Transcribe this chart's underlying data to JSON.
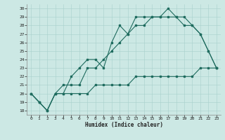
{
  "xlabel": "Humidex (Indice chaleur)",
  "xlim": [
    -0.5,
    23.5
  ],
  "ylim": [
    17.5,
    30.5
  ],
  "yticks": [
    18,
    19,
    20,
    21,
    22,
    23,
    24,
    25,
    26,
    27,
    28,
    29,
    30
  ],
  "xticks": [
    0,
    1,
    2,
    3,
    4,
    5,
    6,
    7,
    8,
    9,
    10,
    11,
    12,
    13,
    14,
    15,
    16,
    17,
    18,
    19,
    20,
    21,
    22,
    23
  ],
  "background_color": "#cce8e4",
  "grid_color": "#a8d0cb",
  "line_color": "#1e6b5e",
  "series1": [
    20,
    19,
    18,
    20,
    20,
    22,
    23,
    24,
    24,
    23,
    26,
    28,
    27,
    29,
    29,
    29,
    29,
    30,
    29,
    29,
    28,
    27,
    25,
    23
  ],
  "series2": [
    20,
    19,
    18,
    20,
    21,
    21,
    21,
    23,
    23,
    24,
    25,
    26,
    27,
    28,
    28,
    29,
    29,
    29,
    29,
    28,
    28,
    27,
    25,
    23
  ],
  "series3": [
    20,
    19,
    18,
    20,
    20,
    20,
    20,
    20,
    21,
    21,
    21,
    21,
    21,
    22,
    22,
    22,
    22,
    22,
    22,
    22,
    22,
    23,
    23,
    23
  ]
}
